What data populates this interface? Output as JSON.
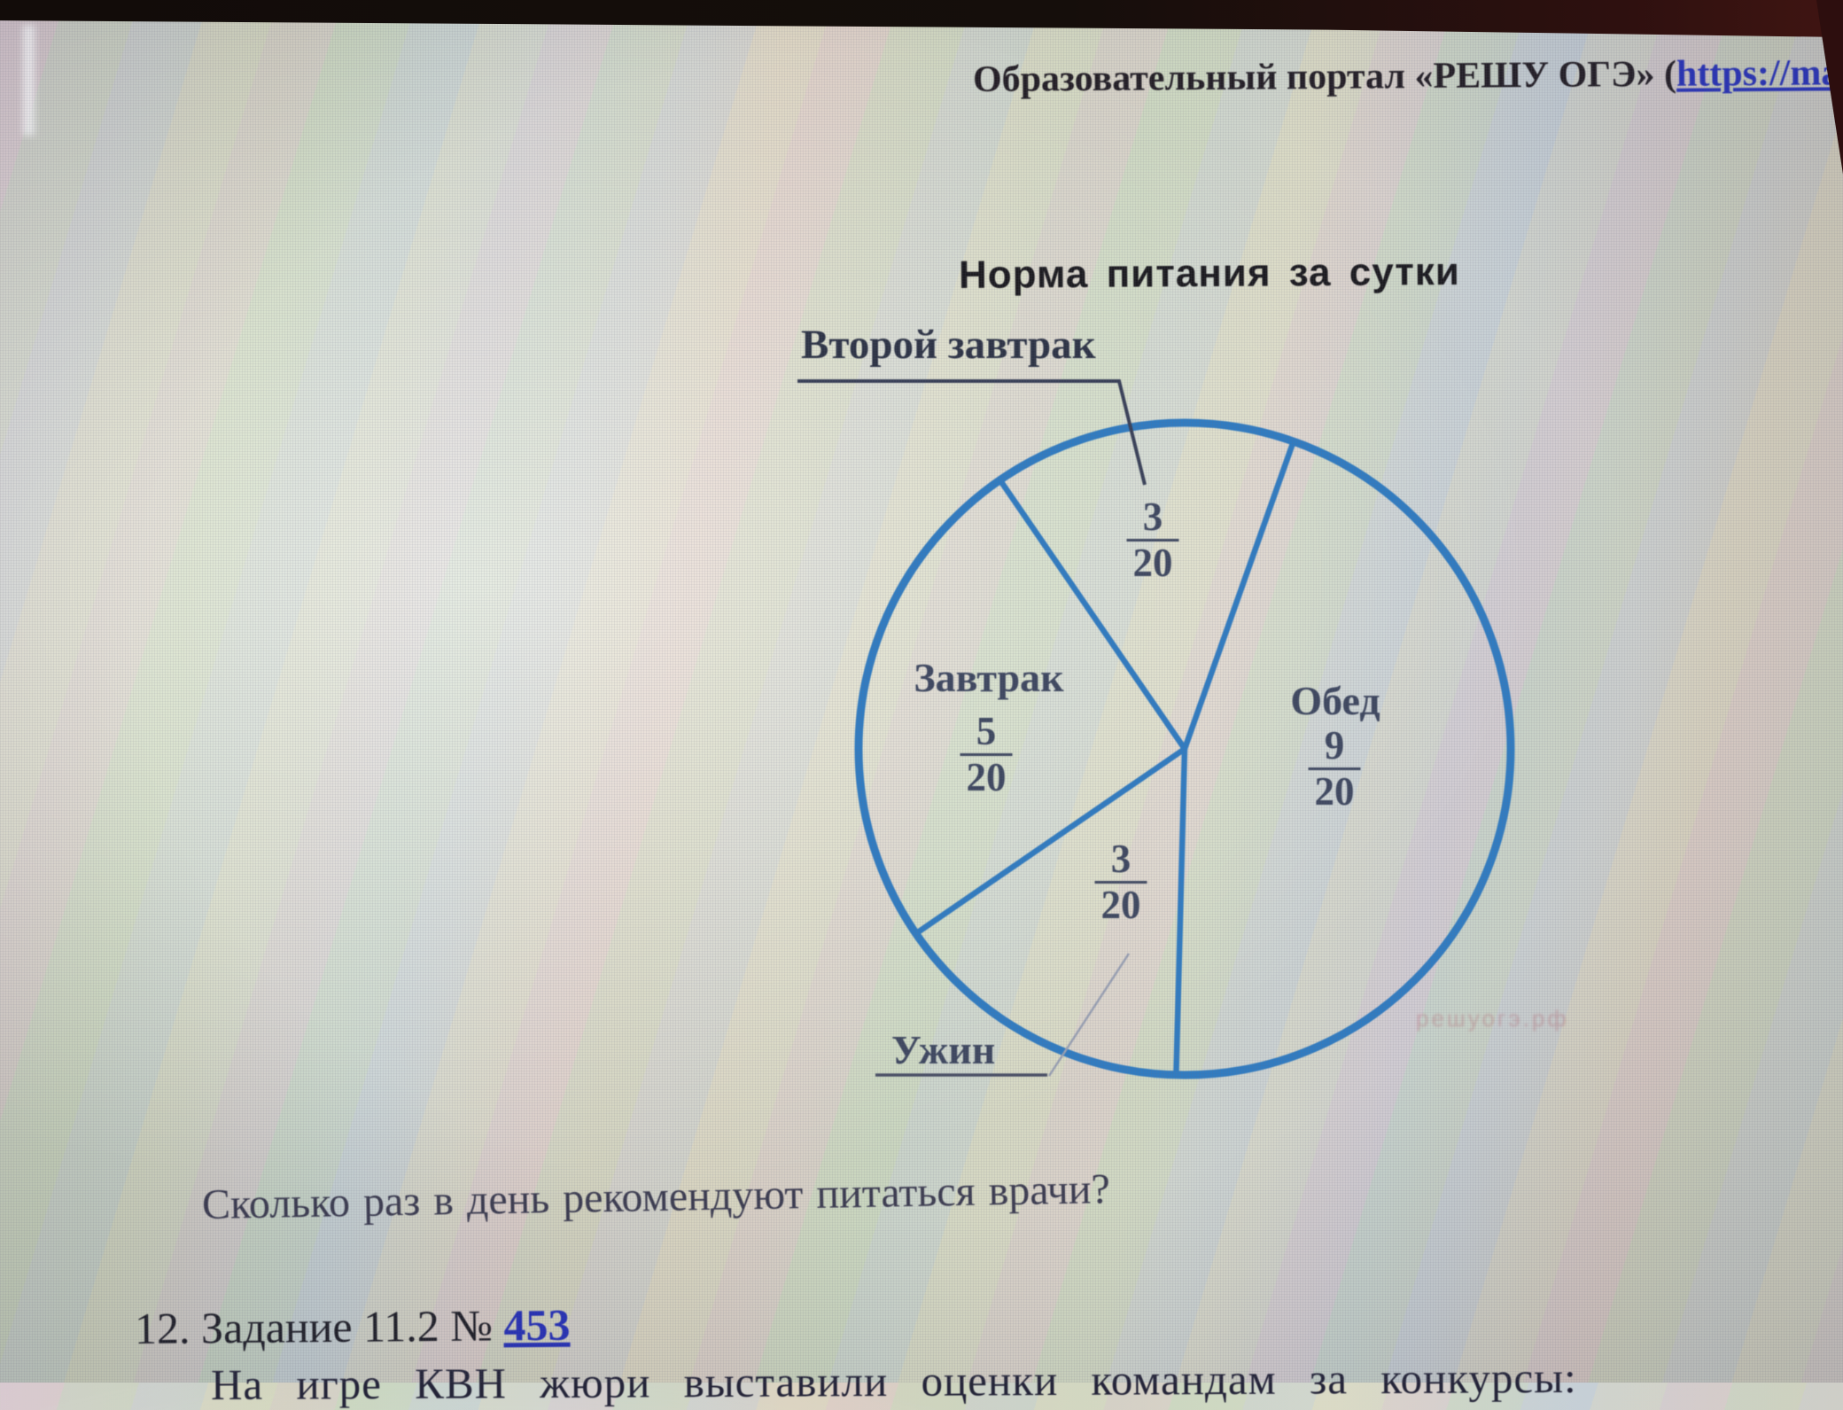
{
  "page": {
    "header": {
      "prefix": "Образовательный портал «РЕШУ ОГЭ» (",
      "link": "https://mat"
    },
    "chart": {
      "title": "Норма питания за сутки",
      "slices": [
        {
          "label": "Второй завтрак",
          "num": "3",
          "den": "20"
        },
        {
          "label": "Завтрак",
          "num": "5",
          "den": "20"
        },
        {
          "label": "Обед",
          "num": "9",
          "den": "20"
        },
        {
          "label": "Ужин",
          "num": "3",
          "den": "20"
        }
      ]
    },
    "question": "Сколько раз в день рекомендуют питаться врачи?",
    "task": {
      "prefix": "12. Задание 11.2 № ",
      "link": "453"
    },
    "partial_line": "На игре КВН жюри выставили оценки командам за конкурсы:",
    "watermark": "решуогэ.рф",
    "colors": {
      "pie_stroke": "#2b7dc8",
      "link_blue": "#2834c8",
      "chart_text": "#3e4862"
    }
  },
  "chart_data": {
    "type": "pie",
    "title": "Норма питания за сутки",
    "categories": [
      "Второй завтрак",
      "Завтрак",
      "Обед",
      "Ужин"
    ],
    "values": [
      3,
      5,
      9,
      3
    ],
    "denominator": 20,
    "fractions": [
      "3/20",
      "5/20",
      "9/20",
      "3/20"
    ],
    "style": "outline-only blue circle with radial dividers, fraction labels inside slices",
    "start_angle_deg": 70.5,
    "clockwise_order": [
      "Обед",
      "Ужин",
      "Завтрак",
      "Второй завтрак"
    ],
    "clockwise_values": [
      9,
      3,
      5,
      3
    ],
    "legend_position": "labels-inside"
  }
}
